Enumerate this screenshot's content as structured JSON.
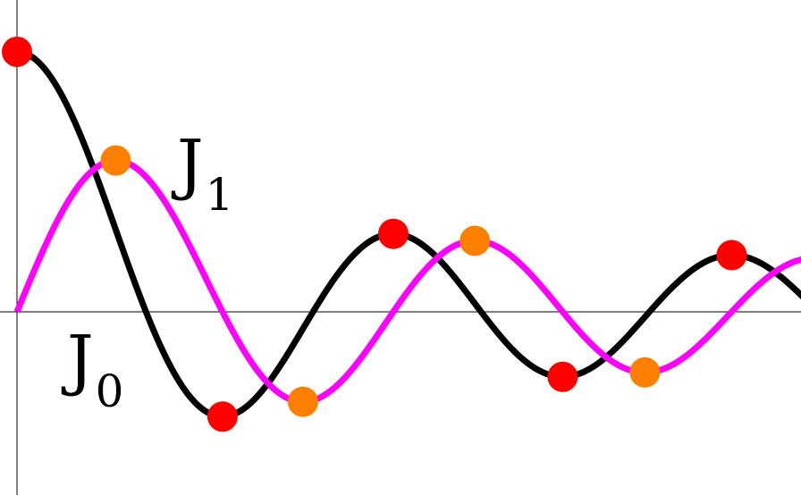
{
  "chart_data": {
    "type": "line",
    "title": "",
    "xlabel": "",
    "ylabel": "",
    "xlim": [
      0,
      14.8
    ],
    "ylim": [
      -0.34,
      1.0
    ],
    "grid": false,
    "axes": {
      "x_axis_at_y": 0,
      "y_axis_at_x": 0
    },
    "series": [
      {
        "name": "J0",
        "label_main": "J",
        "label_sub": "0",
        "color": "#000000",
        "function": "bessel_j0",
        "extrema": [
          {
            "x": 0.0,
            "y": 1.0
          },
          {
            "x": 3.832,
            "y": -0.403
          },
          {
            "x": 7.016,
            "y": 0.3
          },
          {
            "x": 10.173,
            "y": -0.25
          },
          {
            "x": 13.324,
            "y": 0.218
          }
        ],
        "marker_color": "#ff0000"
      },
      {
        "name": "J1",
        "label_main": "J",
        "label_sub": "1",
        "color": "#ff00ff",
        "function": "bessel_j1",
        "extrema": [
          {
            "x": 1.841,
            "y": 0.582
          },
          {
            "x": 5.331,
            "y": -0.346
          },
          {
            "x": 8.536,
            "y": 0.273
          },
          {
            "x": 11.706,
            "y": -0.233
          }
        ],
        "marker_color": "#ff8000"
      }
    ]
  }
}
